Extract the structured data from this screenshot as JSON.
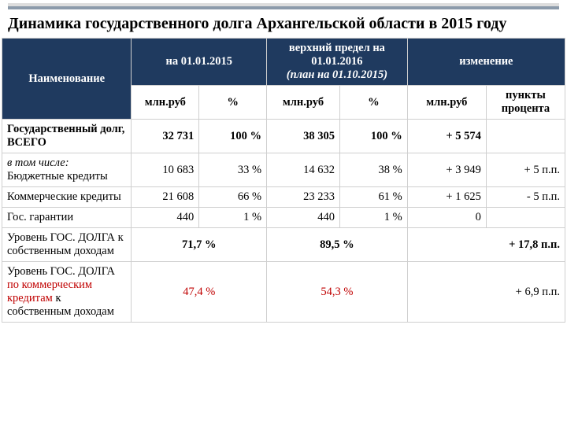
{
  "title": "Динамика государственного долга Архангельской области в 2015 году",
  "headers": {
    "name": "Наименование",
    "col1": "на 01.01.2015",
    "col2_a": "верхний предел на  01.01.2016",
    "col2_b": "(план  на 01.10.2015)",
    "col3": "изменение",
    "sub_mln": "млн.руб",
    "sub_pct": "%",
    "sub_pts": "пункты процента"
  },
  "rows": [
    {
      "name": "Государственный долг, ВСЕГО",
      "name_bold": true,
      "v1": "32 731",
      "p1": "100 %",
      "v2": "38 305",
      "p2": "100 %",
      "v3": "+ 5 574",
      "p3": ""
    },
    {
      "name_it": "в том числе:",
      "name2": "Бюджетные кредиты",
      "v1": "10 683",
      "p1": "33 %",
      "v2": "14 632",
      "p2": "38 %",
      "v3": "+ 3 949",
      "p3": "+ 5 п.п."
    },
    {
      "name": "Коммерческие кредиты",
      "v1": "21 608",
      "p1": "66 %",
      "v2": "23 233",
      "p2": "61 %",
      "v3": "+ 1 625",
      "p3": "- 5  п.п."
    },
    {
      "name": "Гос. гарантии",
      "v1": "440",
      "p1": "1 %",
      "v2": "440",
      "p2": "1 %",
      "v3": "0",
      "p3": ""
    },
    {
      "name": "Уровень ГОС. ДОЛГА к собственным доходам",
      "m1": "71,7 %",
      "m2": "89,5 %",
      "m3": "+ 17,8 п.п.",
      "m3_bold": true
    },
    {
      "name_a": "Уровень ГОС. ДОЛГА ",
      "name_red": "по коммерческим кредитам",
      "name_b": " к собственным доходам",
      "m1": "47,4 %",
      "m1_red": true,
      "m2": "54,3 %",
      "m2_red": true,
      "m3": "+ 6,9 п.п."
    }
  ],
  "style": {
    "navy": "#1f3a5f",
    "red": "#c00000",
    "border": "#cfcfcf",
    "background": "#ffffff"
  }
}
